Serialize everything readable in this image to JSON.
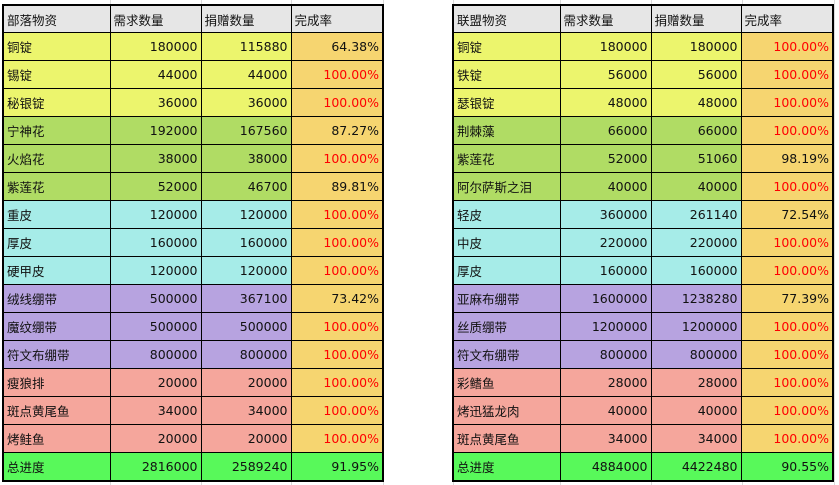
{
  "colors": {
    "header": "#e6e6e6",
    "ingot": "#ecf56d",
    "herb": "#b0dc64",
    "leather": "#a6ece8",
    "bandage": "#b7a3e0",
    "food": "#f5a69c",
    "rate": "#f6d570",
    "total": "#58f95a"
  },
  "tables": [
    {
      "headers": [
        "部落物资",
        "需求数量",
        "捐赠数量",
        "完成率"
      ],
      "rows": [
        {
          "name": "铜锭",
          "demand": "180000",
          "donated": "115880",
          "rate": "64.38%",
          "group": "ingot"
        },
        {
          "name": "锡锭",
          "demand": "44000",
          "donated": "44000",
          "rate": "100.00%",
          "group": "ingot"
        },
        {
          "name": "秘银锭",
          "demand": "36000",
          "donated": "36000",
          "rate": "100.00%",
          "group": "ingot"
        },
        {
          "name": "宁神花",
          "demand": "192000",
          "donated": "167560",
          "rate": "87.27%",
          "group": "herb"
        },
        {
          "name": "火焰花",
          "demand": "38000",
          "donated": "38000",
          "rate": "100.00%",
          "group": "herb"
        },
        {
          "name": "紫莲花",
          "demand": "52000",
          "donated": "46700",
          "rate": "89.81%",
          "group": "herb"
        },
        {
          "name": "重皮",
          "demand": "120000",
          "donated": "120000",
          "rate": "100.00%",
          "group": "leather"
        },
        {
          "name": "厚皮",
          "demand": "160000",
          "donated": "160000",
          "rate": "100.00%",
          "group": "leather"
        },
        {
          "name": "硬甲皮",
          "demand": "120000",
          "donated": "120000",
          "rate": "100.00%",
          "group": "leather"
        },
        {
          "name": "绒线绷带",
          "demand": "500000",
          "donated": "367100",
          "rate": "73.42%",
          "group": "bandage"
        },
        {
          "name": "魔纹绷带",
          "demand": "500000",
          "donated": "500000",
          "rate": "100.00%",
          "group": "bandage"
        },
        {
          "name": "符文布绷带",
          "demand": "800000",
          "donated": "800000",
          "rate": "100.00%",
          "group": "bandage"
        },
        {
          "name": "瘦狼排",
          "demand": "20000",
          "donated": "20000",
          "rate": "100.00%",
          "group": "food"
        },
        {
          "name": "斑点黄尾鱼",
          "demand": "34000",
          "donated": "34000",
          "rate": "100.00%",
          "group": "food"
        },
        {
          "name": "烤鲑鱼",
          "demand": "20000",
          "donated": "20000",
          "rate": "100.00%",
          "group": "food"
        },
        {
          "name": "总进度",
          "demand": "2816000",
          "donated": "2589240",
          "rate": "91.95%",
          "group": "total"
        }
      ]
    },
    {
      "headers": [
        "联盟物资",
        "需求数量",
        "捐赠数量",
        "完成率"
      ],
      "rows": [
        {
          "name": "铜锭",
          "demand": "180000",
          "donated": "180000",
          "rate": "100.00%",
          "group": "ingot"
        },
        {
          "name": "铁锭",
          "demand": "56000",
          "donated": "56000",
          "rate": "100.00%",
          "group": "ingot"
        },
        {
          "name": "瑟银锭",
          "demand": "48000",
          "donated": "48000",
          "rate": "100.00%",
          "group": "ingot"
        },
        {
          "name": "荆棘藻",
          "demand": "66000",
          "donated": "66000",
          "rate": "100.00%",
          "group": "herb"
        },
        {
          "name": "紫莲花",
          "demand": "52000",
          "donated": "51060",
          "rate": "98.19%",
          "group": "herb"
        },
        {
          "name": "阿尔萨斯之泪",
          "demand": "40000",
          "donated": "40000",
          "rate": "100.00%",
          "group": "herb"
        },
        {
          "name": "轻皮",
          "demand": "360000",
          "donated": "261140",
          "rate": "72.54%",
          "group": "leather"
        },
        {
          "name": "中皮",
          "demand": "220000",
          "donated": "220000",
          "rate": "100.00%",
          "group": "leather"
        },
        {
          "name": "厚皮",
          "demand": "160000",
          "donated": "160000",
          "rate": "100.00%",
          "group": "leather"
        },
        {
          "name": "亚麻布绷带",
          "demand": "1600000",
          "donated": "1238280",
          "rate": "77.39%",
          "group": "bandage"
        },
        {
          "name": "丝质绷带",
          "demand": "1200000",
          "donated": "1200000",
          "rate": "100.00%",
          "group": "bandage"
        },
        {
          "name": "符文布绷带",
          "demand": "800000",
          "donated": "800000",
          "rate": "100.00%",
          "group": "bandage"
        },
        {
          "name": "彩鳍鱼",
          "demand": "28000",
          "donated": "28000",
          "rate": "100.00%",
          "group": "food"
        },
        {
          "name": "烤迅猛龙肉",
          "demand": "40000",
          "donated": "40000",
          "rate": "100.00%",
          "group": "food"
        },
        {
          "name": "斑点黄尾鱼",
          "demand": "34000",
          "donated": "34000",
          "rate": "100.00%",
          "group": "food"
        },
        {
          "name": "总进度",
          "demand": "4884000",
          "donated": "4422480",
          "rate": "90.55%",
          "group": "total"
        }
      ]
    }
  ]
}
